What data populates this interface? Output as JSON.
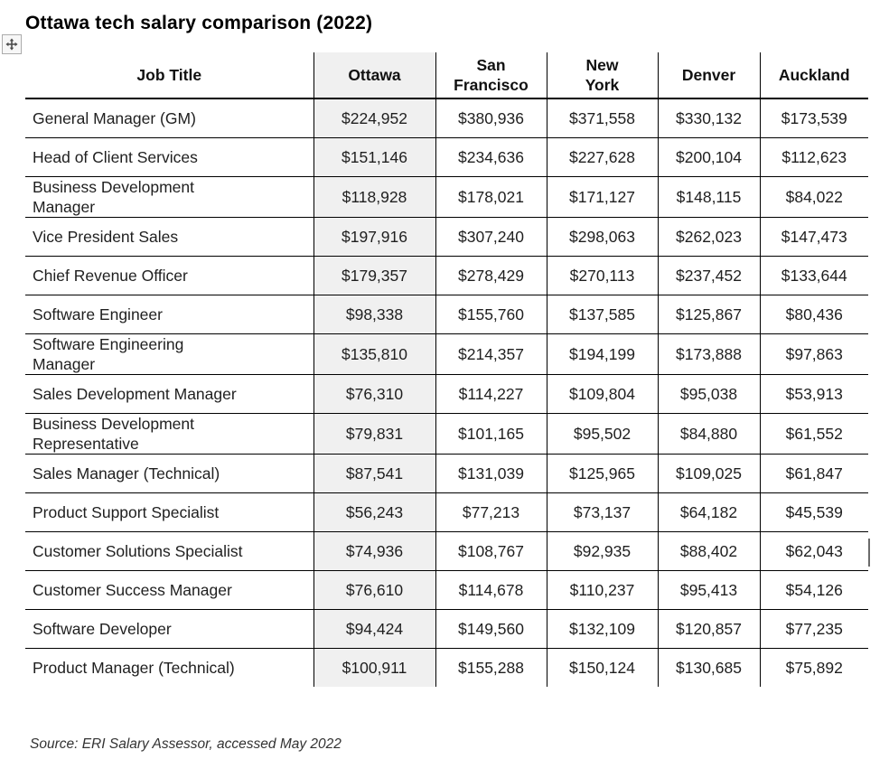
{
  "header": {
    "title": "Ottawa tech salary comparison (2022)"
  },
  "table": {
    "columns": [
      "Job Title",
      "Ottawa",
      "San\nFrancisco",
      "New\nYork",
      "Denver",
      "Auckland"
    ],
    "rows": [
      {
        "job_title": "General Manager (GM)",
        "values": [
          "$224,952",
          "$380,936",
          "$371,558",
          "$330,132",
          "$173,539"
        ]
      },
      {
        "job_title": "Head of Client Services",
        "values": [
          "$151,146",
          "$234,636",
          "$227,628",
          "$200,104",
          "$112,623"
        ]
      },
      {
        "job_title": "Business Development\nManager",
        "values": [
          "$118,928",
          "$178,021",
          "$171,127",
          "$148,115",
          "$84,022"
        ]
      },
      {
        "job_title": "Vice President Sales",
        "values": [
          "$197,916",
          "$307,240",
          "$298,063",
          "$262,023",
          "$147,473"
        ]
      },
      {
        "job_title": "Chief Revenue Officer",
        "values": [
          "$179,357",
          "$278,429",
          "$270,113",
          "$237,452",
          "$133,644"
        ]
      },
      {
        "job_title": "Software Engineer",
        "values": [
          "$98,338",
          "$155,760",
          "$137,585",
          "$125,867",
          "$80,436"
        ]
      },
      {
        "job_title": "Software Engineering\nManager",
        "values": [
          "$135,810",
          "$214,357",
          "$194,199",
          "$173,888",
          "$97,863"
        ]
      },
      {
        "job_title": "Sales Development Manager",
        "values": [
          "$76,310",
          "$114,227",
          "$109,804",
          "$95,038",
          "$53,913"
        ]
      },
      {
        "job_title": "Business Development\nRepresentative",
        "values": [
          "$79,831",
          "$101,165",
          "$95,502",
          "$84,880",
          "$61,552"
        ]
      },
      {
        "job_title": "Sales Manager (Technical)",
        "values": [
          "$87,541",
          "$131,039",
          "$125,965",
          "$109,025",
          "$61,847"
        ]
      },
      {
        "job_title": "Product Support Specialist",
        "values": [
          "$56,243",
          "$77,213",
          "$73,137",
          "$64,182",
          "$45,539"
        ]
      },
      {
        "job_title": "Customer Solutions Specialist",
        "values": [
          "$74,936",
          "$108,767",
          "$92,935",
          "$88,402",
          "$62,043"
        ]
      },
      {
        "job_title": "Customer Success Manager",
        "values": [
          "$76,610",
          "$114,678",
          "$110,237",
          "$95,413",
          "$54,126"
        ]
      },
      {
        "job_title": "Software Developer",
        "values": [
          "$94,424",
          "$149,560",
          "$132,109",
          "$120,857",
          "$77,235"
        ]
      },
      {
        "job_title": "Product Manager (Technical)",
        "values": [
          "$100,911",
          "$155,288",
          "$150,124",
          "$130,685",
          "$75,892"
        ]
      }
    ]
  },
  "footer": {
    "source": "Source: ERI Salary Assessor, accessed May 2022"
  },
  "icons": {
    "move_handle": "move-icon"
  },
  "colors": {
    "ottawa_column_bg": "#f0f0f0",
    "border": "#000000",
    "table_text": "#1f1f1f",
    "source_text": "#333333",
    "handle_border": "#ababab",
    "handle_bg": "#f7f7f7",
    "handle_glyph": "#4a4a4a"
  }
}
